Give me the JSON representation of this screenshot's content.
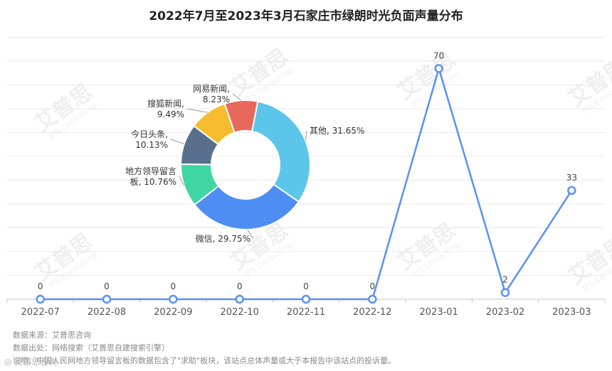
{
  "title": "2022年7月至2023年3月石家庄市绿朗时光负面声量分布",
  "footnotes": {
    "source": "数据来源：艾普思咨询",
    "origin": "数据出处：网络搜索（艾普思自建搜索引擎）",
    "disclaimer": "说明：中国人民网地方领导留言板的数据包含了\"求助\"板块，该站点总体声量或大于本报告中该站点的投诉量。"
  },
  "watermark": {
    "brand": "艾普思",
    "sub": "IPS Consulting"
  },
  "bottom_logo": "◎ 艾普思咨询",
  "colors": {
    "line": "#5b8ff9",
    "grid": "#e9e9e9",
    "pie": [
      "#5bc6ea",
      "#4e8ef2",
      "#3fd6a4",
      "#5a6f8e",
      "#f7bb2e",
      "#e8685c"
    ]
  },
  "chart_data": [
    {
      "type": "line",
      "categories": [
        "2022-07",
        "2022-08",
        "2022-09",
        "2022-10",
        "2022-11",
        "2022-12",
        "2023-01",
        "2023-02",
        "2023-03"
      ],
      "values": [
        0,
        0,
        0,
        0,
        0,
        0,
        70,
        2,
        33
      ],
      "ylim": [
        0,
        80
      ],
      "grid": true
    },
    {
      "type": "pie",
      "donut": true,
      "slices": [
        {
          "label": "其他, 31.65%",
          "value": 31.65
        },
        {
          "label": "微信, 29.75%",
          "value": 29.75
        },
        {
          "label": "地方领导留言板, 10.76%",
          "value": 10.76
        },
        {
          "label": "今日头条, 10.13%",
          "value": 10.13
        },
        {
          "label": "搜狐新闻, 9.49%",
          "value": 9.49
        },
        {
          "label": "网易新闻, 8.23%",
          "value": 8.23
        }
      ]
    }
  ]
}
